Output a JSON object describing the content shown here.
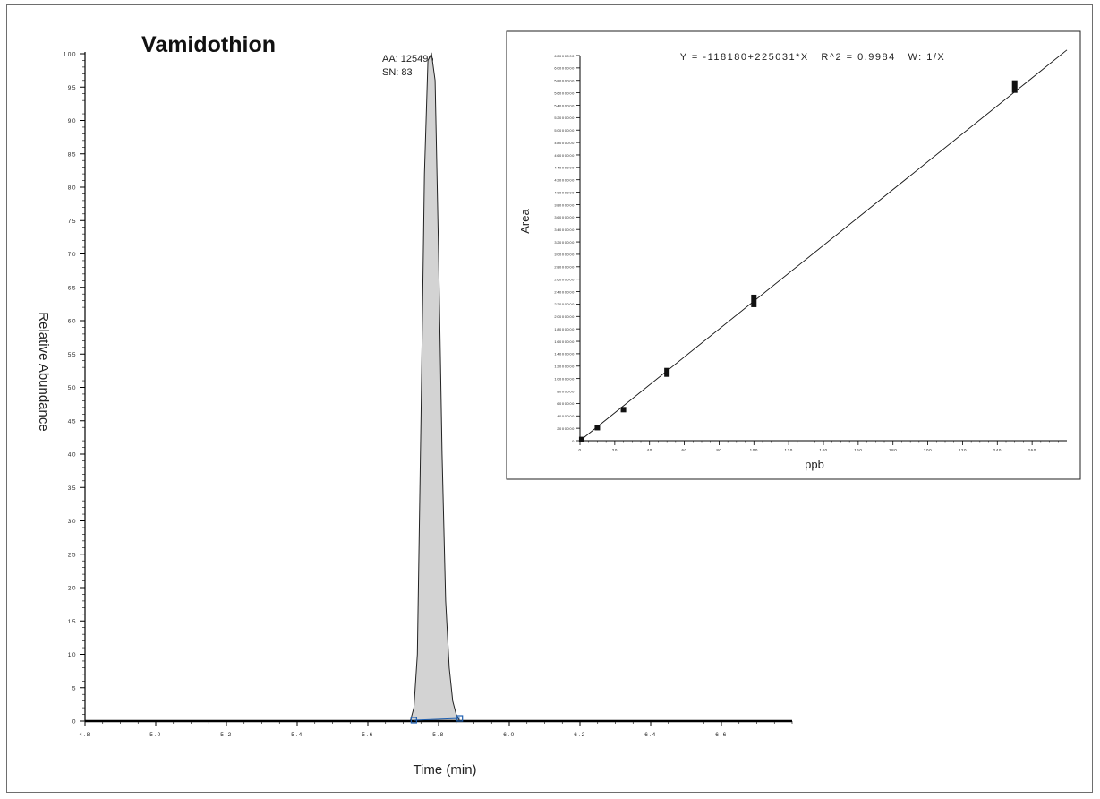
{
  "main_chart": {
    "title": "Vamidothion",
    "xlabel": "Time (min)",
    "ylabel": "Relative Abundance",
    "peak_annotation": {
      "area_label": "AA: 125496",
      "sn_label": "SN: 83"
    }
  },
  "inset_chart": {
    "equation": "Y = -118180+225031*X   R^2 = 0.9984   W: 1/X",
    "xlabel": "ppb",
    "ylabel": "Area"
  },
  "colors": {
    "peak_fill": "#d3d3d3",
    "axis": "#000000",
    "baseline_marker": "#1f5fb0",
    "frame": "#6e6e6e"
  },
  "chart_data": [
    {
      "type": "area",
      "title": "Vamidothion",
      "xlabel": "Time (min)",
      "ylabel": "Relative Abundance",
      "xlim": [
        4.8,
        6.8
      ],
      "ylim": [
        0,
        100
      ],
      "x_ticks": [
        "4.8",
        "5.0",
        "5.2",
        "5.4",
        "5.6",
        "5.8",
        "6.0",
        "6.2",
        "6.4",
        "6.6"
      ],
      "y_ticks": [
        "0",
        "5",
        "10",
        "15",
        "20",
        "25",
        "30",
        "35",
        "40",
        "45",
        "50",
        "55",
        "60",
        "65",
        "70",
        "75",
        "80",
        "85",
        "90",
        "95",
        "100"
      ],
      "series": [
        {
          "x": [
            4.8,
            5.72,
            5.73,
            5.74,
            5.75,
            5.76,
            5.77,
            5.78,
            5.79,
            5.8,
            5.81,
            5.82,
            5.83,
            5.84,
            5.85,
            5.86,
            6.8
          ],
          "y": [
            0,
            0,
            2,
            10,
            45,
            82,
            99,
            100,
            96,
            70,
            40,
            18,
            8,
            3,
            1,
            0,
            0
          ]
        }
      ],
      "annotations": [
        "AA: 125496",
        "SN: 83"
      ],
      "integration_baseline": {
        "start_x": 5.73,
        "end_x": 5.86
      }
    },
    {
      "type": "scatter",
      "equation": "Y = -118180+225031*X   R^2 = 0.9984   W: 1/X",
      "xlabel": "ppb",
      "ylabel": "Area",
      "xlim": [
        0,
        280
      ],
      "ylim": [
        0,
        62000000
      ],
      "x_ticks": [
        "0",
        "20",
        "40",
        "60",
        "80",
        "100",
        "120",
        "140",
        "160",
        "180",
        "200",
        "220",
        "240",
        "260"
      ],
      "y_ticks": [
        "0",
        "2000000",
        "4000000",
        "6000000",
        "8000000",
        "10000000",
        "12000000",
        "14000000",
        "16000000",
        "18000000",
        "20000000",
        "22000000",
        "24000000",
        "26000000",
        "28000000",
        "30000000",
        "32000000",
        "34000000",
        "36000000",
        "38000000",
        "40000000",
        "42000000",
        "44000000",
        "46000000",
        "48000000",
        "50000000",
        "52000000",
        "54000000",
        "56000000",
        "58000000",
        "60000000",
        "62000000"
      ],
      "points": [
        {
          "x": 1,
          "y": 200000
        },
        {
          "x": 10,
          "y": 2100000
        },
        {
          "x": 25,
          "y": 5000000
        },
        {
          "x": 50,
          "y": 11000000
        },
        {
          "x": 100,
          "y": 22500000
        },
        {
          "x": 250,
          "y": 57000000
        }
      ],
      "fit_line": {
        "intercept": -118180,
        "slope": 225031,
        "r2": 0.9984,
        "weighting": "1/X"
      }
    }
  ]
}
